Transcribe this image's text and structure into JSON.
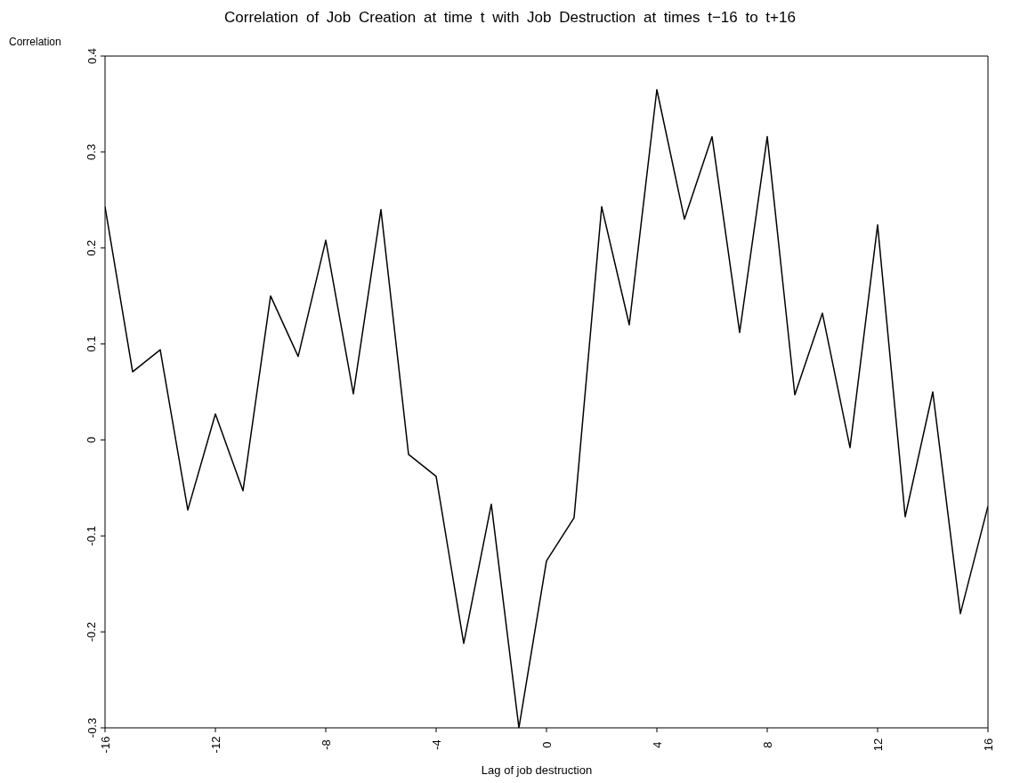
{
  "chart_data": {
    "type": "line",
    "title": "Correlation of Job Creation at time t with Job Destruction at times t−16 to t+16",
    "xlabel": "Lag of job destruction",
    "ylabel": "Correlation",
    "x": [
      -16,
      -15,
      -14,
      -13,
      -12,
      -11,
      -10,
      -9,
      -8,
      -7,
      -6,
      -5,
      -4,
      -3,
      -2,
      -1,
      0,
      1,
      2,
      3,
      4,
      5,
      6,
      7,
      8,
      9,
      10,
      11,
      12,
      13,
      14,
      15,
      16
    ],
    "series": [
      {
        "color": "#000000",
        "values": [
          0.243,
          0.071,
          0.094,
          -0.073,
          0.027,
          -0.053,
          0.15,
          0.087,
          0.208,
          0.048,
          0.24,
          -0.015,
          -0.038,
          -0.212,
          -0.067,
          -0.3,
          -0.126,
          -0.081,
          0.243,
          0.12,
          0.365,
          0.23,
          0.316,
          0.112,
          0.316,
          0.047,
          0.132,
          -0.008,
          0.224,
          -0.08,
          0.05,
          -0.181,
          -0.069
        ]
      }
    ],
    "xlim": [
      -16,
      16
    ],
    "xticks": [
      -16,
      -12,
      -8,
      -4,
      0,
      4,
      8,
      12,
      16
    ],
    "ylim": [
      -0.3,
      0.4
    ],
    "yticks": [
      -0.3,
      -0.2,
      -0.1,
      0,
      0.1,
      0.2,
      0.3,
      0.4
    ],
    "grid": false,
    "legend": false,
    "marker": "none",
    "line_style": "solid"
  }
}
